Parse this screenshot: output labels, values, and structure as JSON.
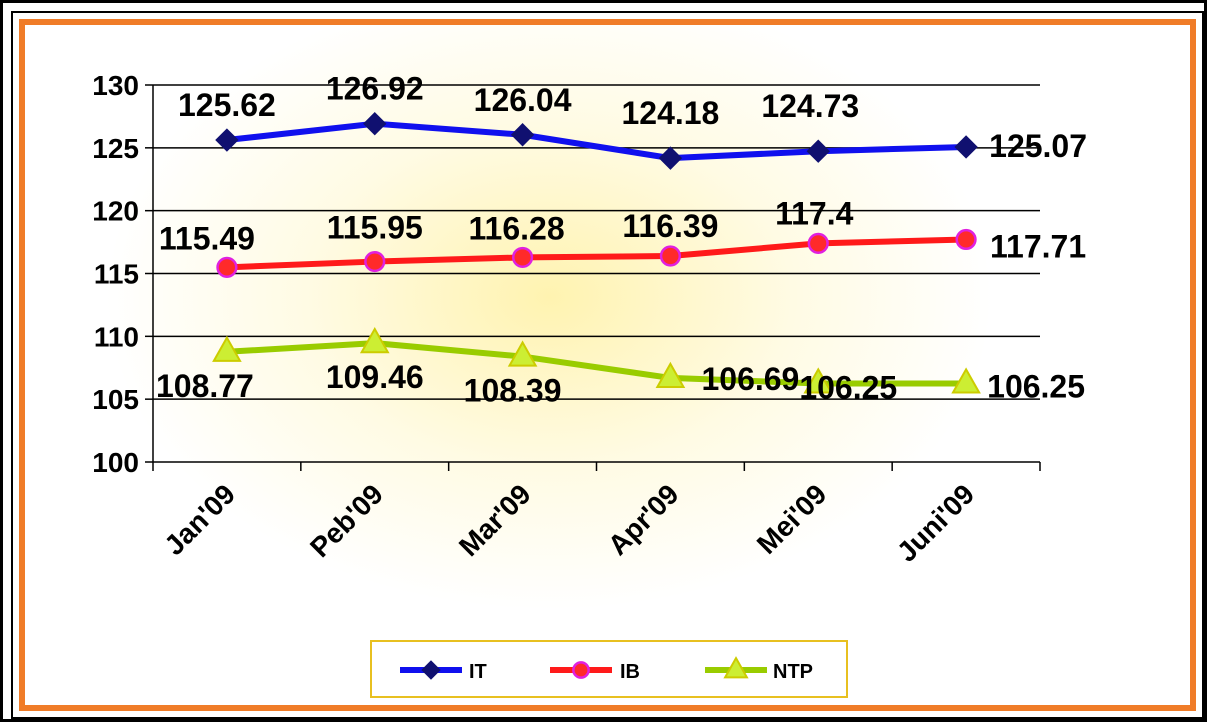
{
  "chart_data": {
    "type": "line",
    "title": "",
    "xlabel": "",
    "ylabel": "",
    "categories": [
      "Jan'09",
      "Peb'09",
      "Mar'09",
      "Apr'09",
      "Mei'09",
      "Juni'09"
    ],
    "ylim": [
      100,
      130
    ],
    "yticks": [
      100,
      105,
      110,
      115,
      120,
      125,
      130
    ],
    "grid": "horizontal",
    "legend_position": "bottom",
    "series": [
      {
        "name": "IT",
        "values": [
          125.62,
          126.92,
          126.04,
          124.18,
          124.73,
          125.07
        ],
        "color": "#1010ee",
        "marker": "diamond",
        "marker_fill": "#101070"
      },
      {
        "name": "IB",
        "values": [
          115.49,
          115.95,
          116.28,
          116.39,
          117.4,
          117.71
        ],
        "color": "#ff1a1a",
        "marker": "circle",
        "marker_fill": "#ff2a2a",
        "marker_stroke": "#e020e0"
      },
      {
        "name": "NTP",
        "values": [
          108.77,
          109.46,
          108.39,
          106.69,
          106.25,
          106.25
        ],
        "color": "#99cc00",
        "marker": "triangle",
        "marker_fill": "#ccee33",
        "marker_stroke": "#cccc00"
      }
    ],
    "data_labels": [
      [
        "125.62",
        "126.92",
        "126.04",
        "124.18",
        "124.73",
        "125.07"
      ],
      [
        "115.49",
        "115.95",
        "116.28",
        "116.39",
        "117.4",
        "117.71"
      ],
      [
        "108.77",
        "109.46",
        "108.39",
        "106.69",
        "106.25",
        "106.25"
      ]
    ]
  }
}
